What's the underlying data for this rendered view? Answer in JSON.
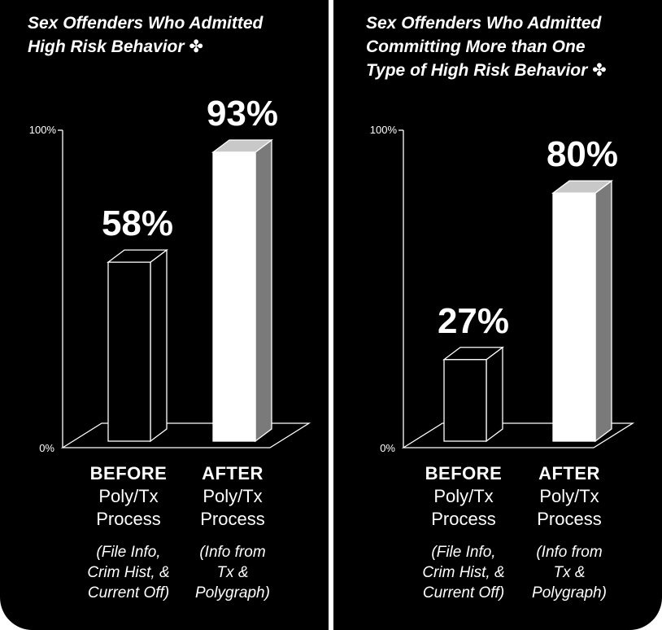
{
  "chart_data": [
    {
      "type": "bar",
      "title": "Sex Offenders Who Admitted\nHigh Risk Behavior ✤",
      "categories": [
        "BEFORE",
        "AFTER"
      ],
      "category_lines": [
        {
          "top": "BEFORE",
          "line2": "Poly/Tx",
          "line3": "Process",
          "note": "(File Info,\nCrim Hist, &\nCurrent Off)"
        },
        {
          "top": "AFTER",
          "line2": "Poly/Tx",
          "line3": "Process",
          "note": "(Info from\nTx &\nPolygraph)"
        }
      ],
      "values": [
        58,
        93
      ],
      "data_labels": [
        "58%",
        "93%"
      ],
      "ylim": [
        0,
        100
      ],
      "ytick_labels": [
        "0%",
        "100%"
      ],
      "bar_colors": [
        "#000000",
        "#ffffff"
      ],
      "grid": false
    },
    {
      "type": "bar",
      "title": "Sex Offenders Who Admitted\nCommitting More than One\nType of High Risk Behavior ✤",
      "categories": [
        "BEFORE",
        "AFTER"
      ],
      "category_lines": [
        {
          "top": "BEFORE",
          "line2": "Poly/Tx",
          "line3": "Process",
          "note": "(File Info,\nCrim Hist, &\nCurrent Off)"
        },
        {
          "top": "AFTER",
          "line2": "Poly/Tx",
          "line3": "Process",
          "note": "(Info from\nTx &\nPolygraph)"
        }
      ],
      "values": [
        27,
        80
      ],
      "data_labels": [
        "27%",
        "80%"
      ],
      "ylim": [
        0,
        100
      ],
      "ytick_labels": [
        "0%",
        "100%"
      ],
      "bar_colors": [
        "#000000",
        "#ffffff"
      ],
      "grid": false
    }
  ]
}
